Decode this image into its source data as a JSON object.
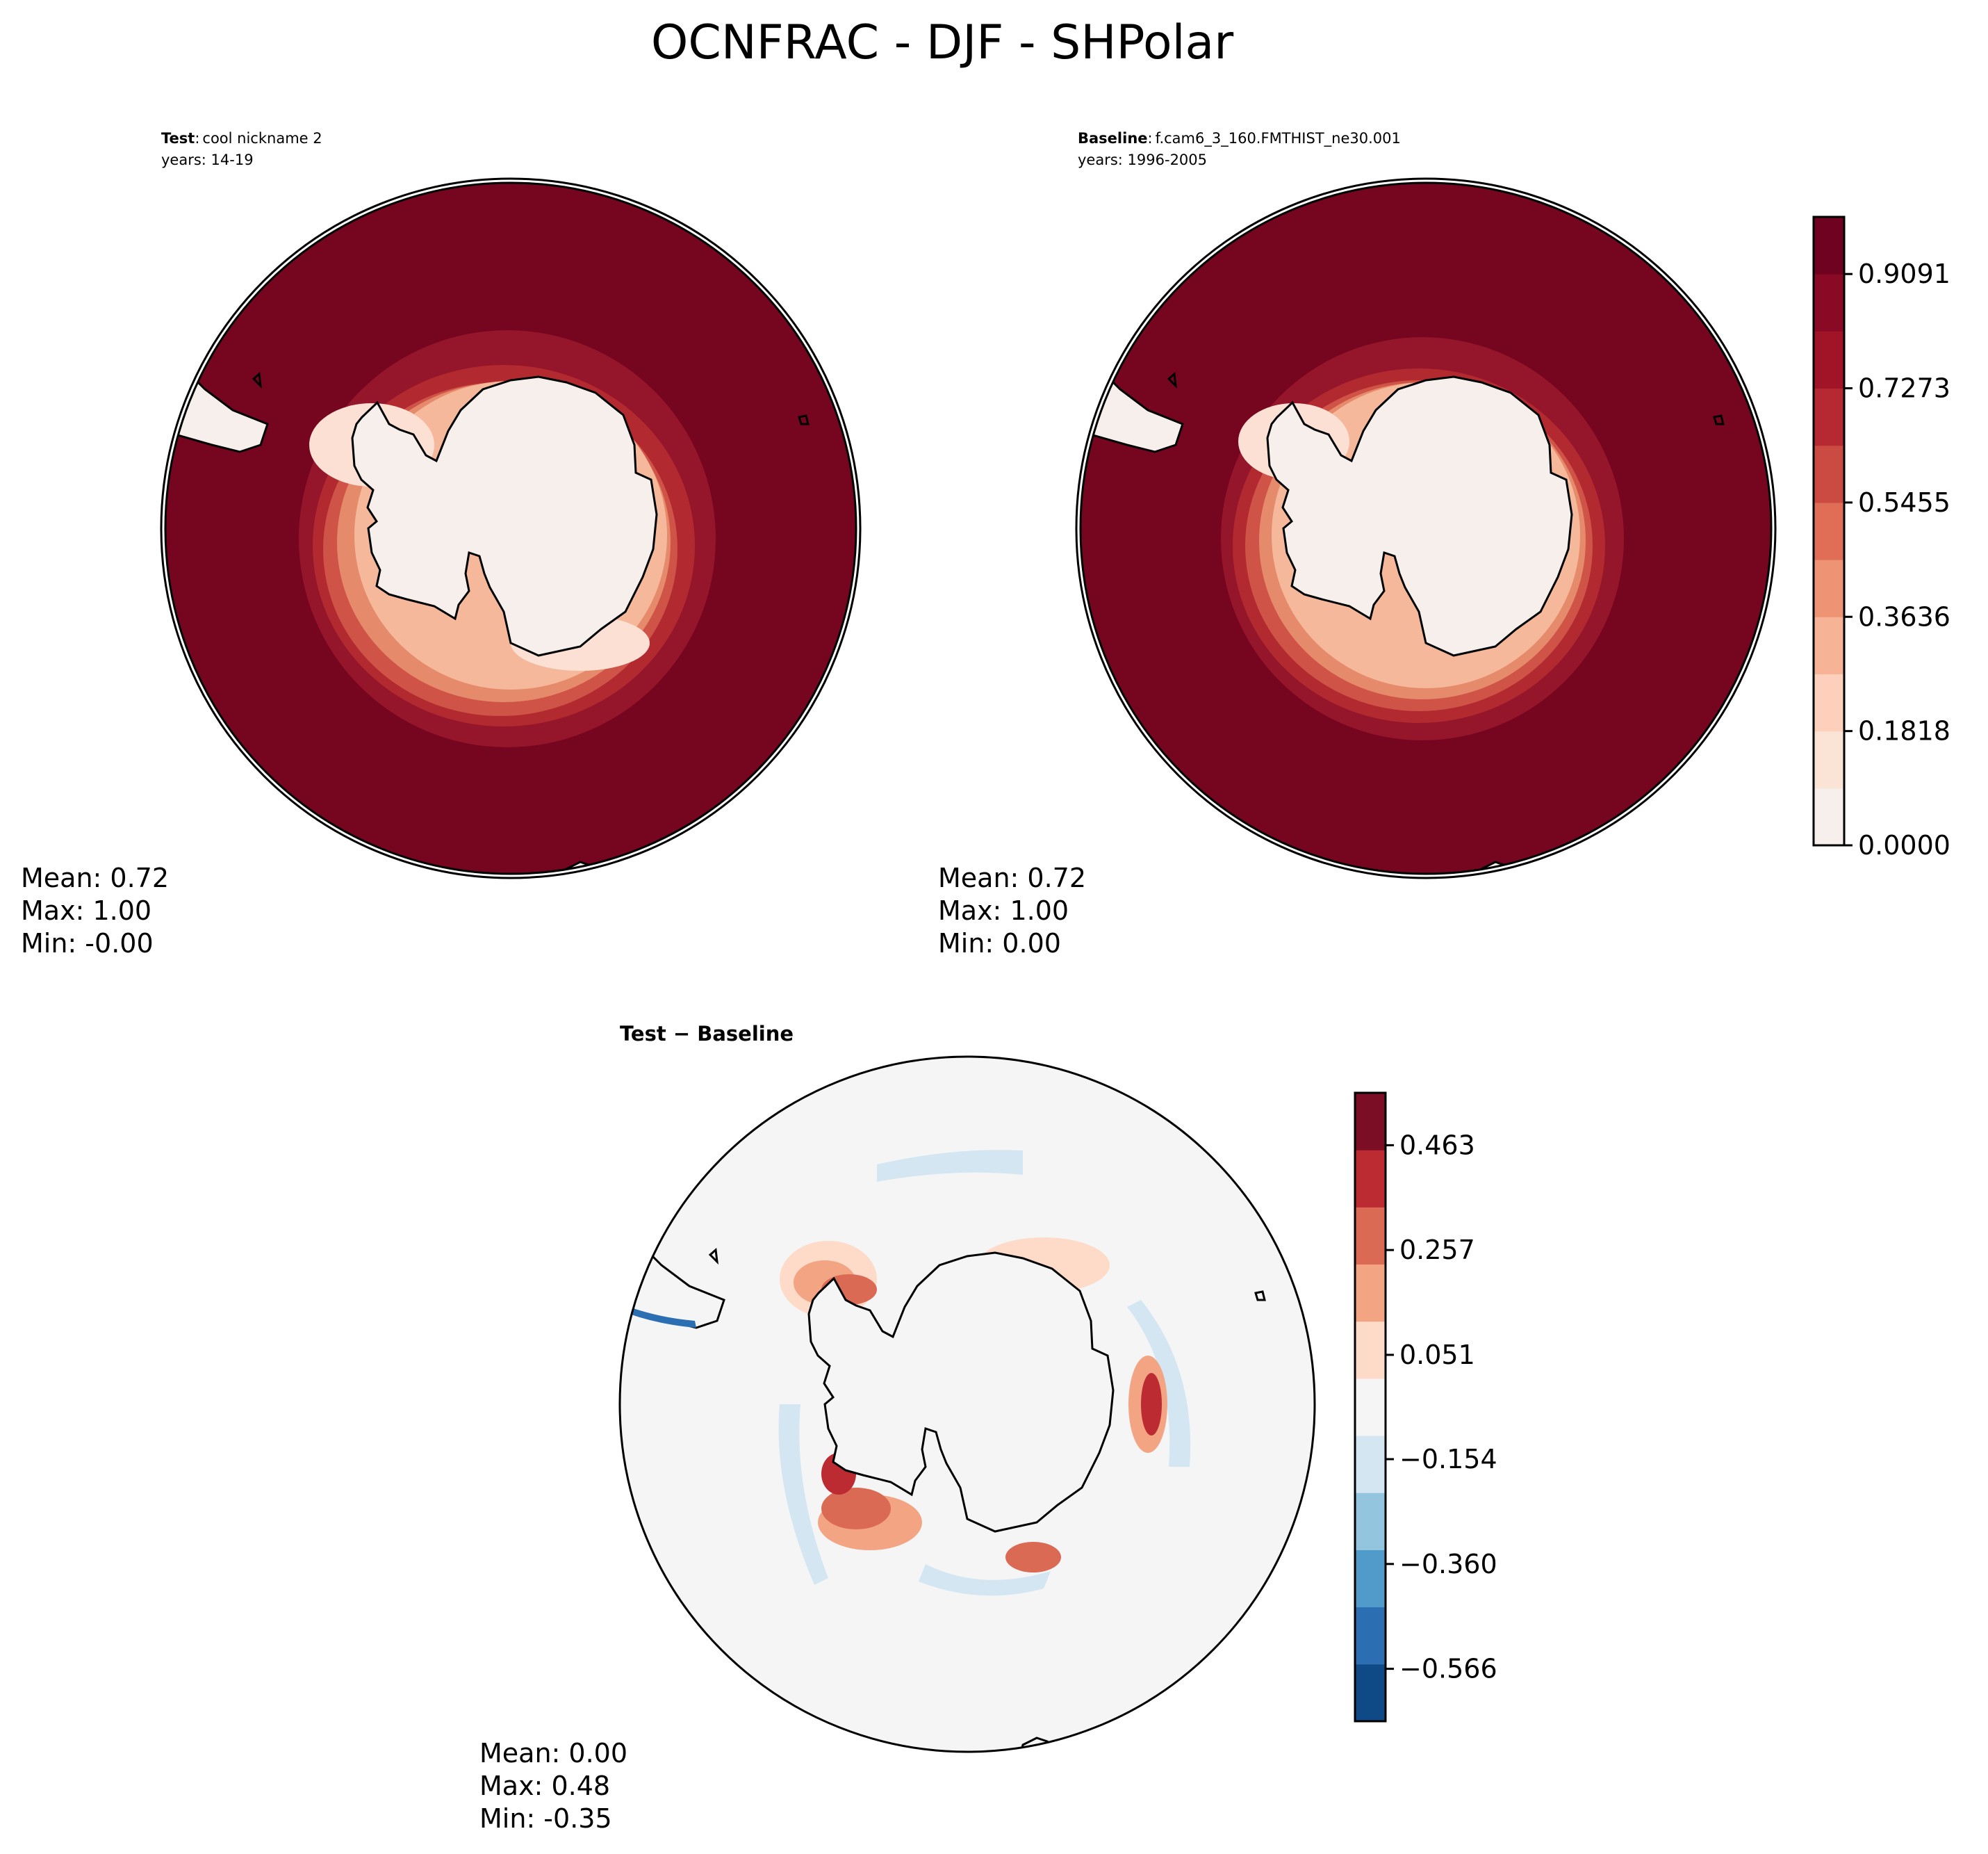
{
  "chart_data": {
    "title": "OCNFRAC - DJF - SHPolar",
    "panels": [
      {
        "id": "test",
        "type": "heatmap",
        "projection": "south-polar-stereographic",
        "label_bold": "Test",
        "label_sep": ":",
        "label_text": "cool nickname 2",
        "years": "years: 14-19",
        "stats": {
          "mean": "Mean:  0.72",
          "max": "Max:  1.00",
          "min": "Min: -0.00"
        },
        "colormap": "reds",
        "contour_bands": [
          {
            "level": 0.0,
            "color": "#f7efeb"
          },
          {
            "level": 0.15,
            "color": "#fbe0d3"
          },
          {
            "level": 0.3,
            "color": "#f6b89b"
          },
          {
            "level": 0.45,
            "color": "#e68a6c"
          },
          {
            "level": 0.6,
            "color": "#cf5347"
          },
          {
            "level": 0.75,
            "color": "#b22a30"
          },
          {
            "level": 0.88,
            "color": "#95152a"
          },
          {
            "level": 1.0,
            "color": "#760520"
          }
        ]
      },
      {
        "id": "baseline",
        "type": "heatmap",
        "projection": "south-polar-stereographic",
        "label_bold": "Baseline",
        "label_sep": ":",
        "label_text": "f.cam6_3_160.FMTHIST_ne30.001",
        "years": "years: 1996-2005",
        "stats": {
          "mean": "Mean:  0.72",
          "max": "Max:  1.00",
          "min": "Min:  0.00"
        },
        "colormap": "reds"
      },
      {
        "id": "diff",
        "type": "heatmap",
        "projection": "south-polar-stereographic",
        "title": "Test − Baseline",
        "stats": {
          "mean": "Mean:  0.00",
          "max": "Max:  0.48",
          "min": "Min: -0.35"
        },
        "colormap": "diverging-blue-red"
      }
    ],
    "colorbar_main": {
      "range": [
        0.0,
        1.0
      ],
      "ticks": [
        "0.9091",
        "0.7273",
        "0.5455",
        "0.3636",
        "0.1818",
        "0.0000"
      ],
      "tick_values": [
        0.9091,
        0.7273,
        0.5455,
        0.3636,
        0.1818,
        0.0
      ],
      "colors": [
        "#f6efeb",
        "#fbe3d6",
        "#fcd0bb",
        "#f6b396",
        "#ef9375",
        "#e06d55",
        "#cb4a41",
        "#b62932",
        "#a11428",
        "#8a0a25",
        "#6f0220"
      ]
    },
    "colorbar_diff": {
      "range": [
        -0.669,
        0.566
      ],
      "ticks": [
        "0.463",
        "0.257",
        "0.051",
        "−0.154",
        "−0.360",
        "−0.566"
      ],
      "tick_values": [
        0.463,
        0.257,
        0.051,
        -0.154,
        -0.36,
        -0.566
      ],
      "colors": [
        "#0f4a87",
        "#2b6fb2",
        "#509bc9",
        "#93c5df",
        "#d3e6f2",
        "#f5f5f5",
        "#fddbc8",
        "#f3a483",
        "#db6a55",
        "#bb2b31",
        "#7b0d24"
      ]
    }
  }
}
